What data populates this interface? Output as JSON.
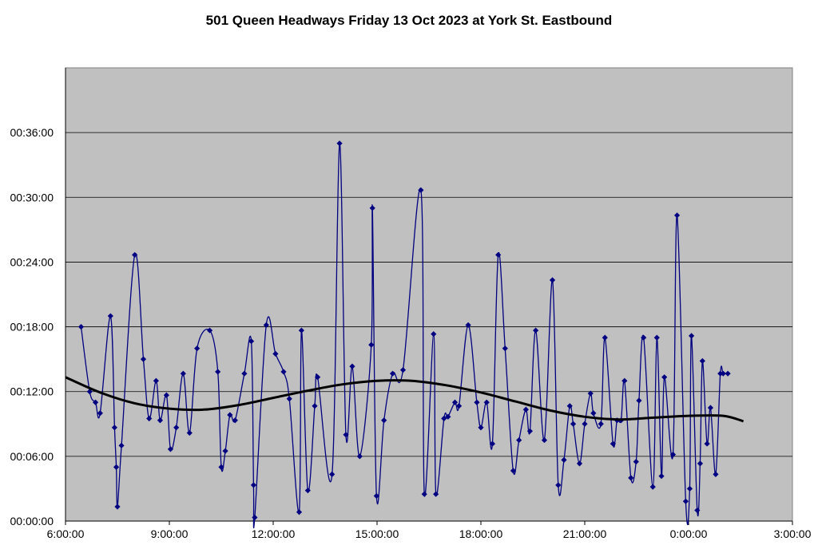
{
  "chart_data": {
    "type": "line",
    "title": "501 Queen Headways Friday 13 Oct 2023 at York St. Eastbound",
    "xlabel": "",
    "ylabel": "",
    "x_ticks": [
      "6:00:00",
      "9:00:00",
      "12:00:00",
      "15:00:00",
      "18:00:00",
      "21:00:00",
      "0:00:00",
      "3:00:00"
    ],
    "y_ticks": [
      "00:00:00",
      "00:06:00",
      "00:12:00",
      "00:18:00",
      "00:24:00",
      "00:30:00",
      "00:36:00"
    ],
    "xlim": [
      "6:00:00",
      "3:00:00"
    ],
    "ylim": [
      "00:00:00",
      "00:42:00"
    ],
    "grid": "horizontal",
    "legend": "none",
    "colors": {
      "plot_background": "#c0c0c0",
      "series": "#000080",
      "trend": "#000000",
      "gridline": "#000000"
    },
    "series": [
      {
        "x": [
          "6:27:00",
          "6:42:00",
          "6:52:00",
          "7:00:00",
          "7:18:00",
          "7:25:00",
          "7:28:00",
          "7:30:00",
          "7:37:00",
          "8:00:00",
          "8:15:00",
          "8:25:00",
          "8:37:00",
          "8:44:00",
          "8:55:00",
          "9:02:00",
          "9:12:00",
          "9:24:00",
          "9:35:00",
          "9:48:00",
          "10:10:00",
          "10:24:00",
          "10:30:00",
          "10:37:00",
          "10:45:00",
          "10:54:00",
          "11:10:00",
          "11:22:00",
          "11:26:00",
          "11:28:00",
          "11:48:00",
          "12:04:00",
          "12:18:00",
          "12:28:00",
          "12:45:00",
          "12:49:00",
          "13:00:00",
          "13:12:00",
          "13:17:00",
          "13:42:00",
          "13:55:00",
          "14:06:00",
          "14:17:00",
          "14:30:00",
          "14:50:00",
          "14:52:00",
          "14:59:00",
          "15:12:00",
          "15:27:00",
          "15:45:00",
          "16:16:00",
          "16:22:00",
          "16:38:00",
          "16:42:00",
          "16:56:00",
          "17:03:00",
          "17:15:00",
          "17:22:00",
          "17:38:00",
          "17:53:00",
          "18:00:00",
          "18:10:00",
          "18:20:00",
          "18:30:00",
          "18:42:00",
          "18:56:00",
          "19:06:00",
          "19:18:00",
          "19:25:00",
          "19:35:00",
          "19:50:00",
          "20:04:00",
          "20:14:00",
          "20:24:00",
          "20:34:00",
          "20:40:00",
          "20:51:00",
          "21:00:00",
          "21:10:00",
          "21:15:00",
          "21:28:00",
          "21:35:00",
          "21:49:00",
          "21:56:00",
          "22:03:00",
          "22:09:00",
          "22:20:00",
          "22:29:00",
          "22:34:00",
          "22:42:00",
          "22:58:00",
          "23:05:00",
          "23:13:00",
          "23:18:00",
          "23:33:00",
          "23:40:00",
          "23:55:00",
          "0:02:00",
          "0:05:00",
          "0:15:00",
          "0:20:00",
          "0:24:00",
          "0:32:00",
          "0:38:00",
          "0:47:00",
          "0:55:00",
          "1:00:00",
          "1:08:00"
        ],
        "y": [
          "00:18:00",
          "00:12:00",
          "00:11:00",
          "00:10:00",
          "00:19:00",
          "00:08:40",
          "00:05:00",
          "00:01:20",
          "00:07:00",
          "00:24:40",
          "00:15:00",
          "00:09:30",
          "00:13:00",
          "00:09:20",
          "00:11:40",
          "00:06:40",
          "00:08:40",
          "00:13:40",
          "00:08:10",
          "00:16:00",
          "00:17:40",
          "00:13:50",
          "00:05:00",
          "00:06:30",
          "00:09:50",
          "00:09:20",
          "00:13:40",
          "00:16:40",
          "00:03:20",
          "00:00:20",
          "00:18:10",
          "00:15:30",
          "00:13:50",
          "00:11:20",
          "00:00:50",
          "00:17:40",
          "00:02:50",
          "00:10:40",
          "00:13:20",
          "00:04:20",
          "00:35:00",
          "00:08:00",
          "00:14:20",
          "00:06:00",
          "00:16:20",
          "00:29:00",
          "00:02:20",
          "00:09:20",
          "00:13:40",
          "00:14:00",
          "00:30:40",
          "00:02:30",
          "00:17:20",
          "00:02:30",
          "00:09:30",
          "00:09:40",
          "00:11:00",
          "00:10:40",
          "00:18:10",
          "00:11:00",
          "00:08:40",
          "00:11:00",
          "00:07:10",
          "00:24:40",
          "00:16:00",
          "00:04:40",
          "00:07:30",
          "00:10:20",
          "00:08:20",
          "00:17:40",
          "00:07:30",
          "00:22:20",
          "00:03:20",
          "00:05:40",
          "00:10:40",
          "00:09:00",
          "00:05:20",
          "00:09:00",
          "00:11:50",
          "00:10:00",
          "00:09:00",
          "00:17:00",
          "00:07:10",
          "00:09:20",
          "00:09:20",
          "00:13:00",
          "00:04:00",
          "00:05:30",
          "00:11:10",
          "00:17:00",
          "00:03:10",
          "00:17:00",
          "00:04:10",
          "00:13:20",
          "00:06:10",
          "00:28:20",
          "00:01:50",
          "00:03:00",
          "00:17:10",
          "00:01:00",
          "00:05:20",
          "00:14:50",
          "00:07:10",
          "00:10:30",
          "00:04:20",
          "00:13:40",
          "00:13:40",
          "00:13:40"
        ]
      },
      {
        "x": [
          "6:00:00",
          "7:00:00",
          "8:00:00",
          "9:00:00",
          "10:00:00",
          "11:00:00",
          "12:00:00",
          "13:00:00",
          "14:00:00",
          "15:00:00",
          "16:00:00",
          "17:00:00",
          "18:00:00",
          "19:00:00",
          "20:00:00",
          "21:00:00",
          "22:00:00",
          "23:00:00",
          "0:00:00",
          "1:00:00",
          "1:35:00"
        ],
        "y": [
          "00:13:20",
          "00:11:55",
          "00:10:55",
          "00:10:25",
          "00:10:20",
          "00:10:45",
          "00:11:25",
          "00:12:05",
          "00:12:40",
          "00:13:00",
          "00:13:00",
          "00:12:35",
          "00:11:55",
          "00:11:05",
          "00:10:15",
          "00:09:40",
          "00:09:25",
          "00:09:35",
          "00:09:45",
          "00:09:45",
          "00:09:15"
        ]
      }
    ]
  }
}
